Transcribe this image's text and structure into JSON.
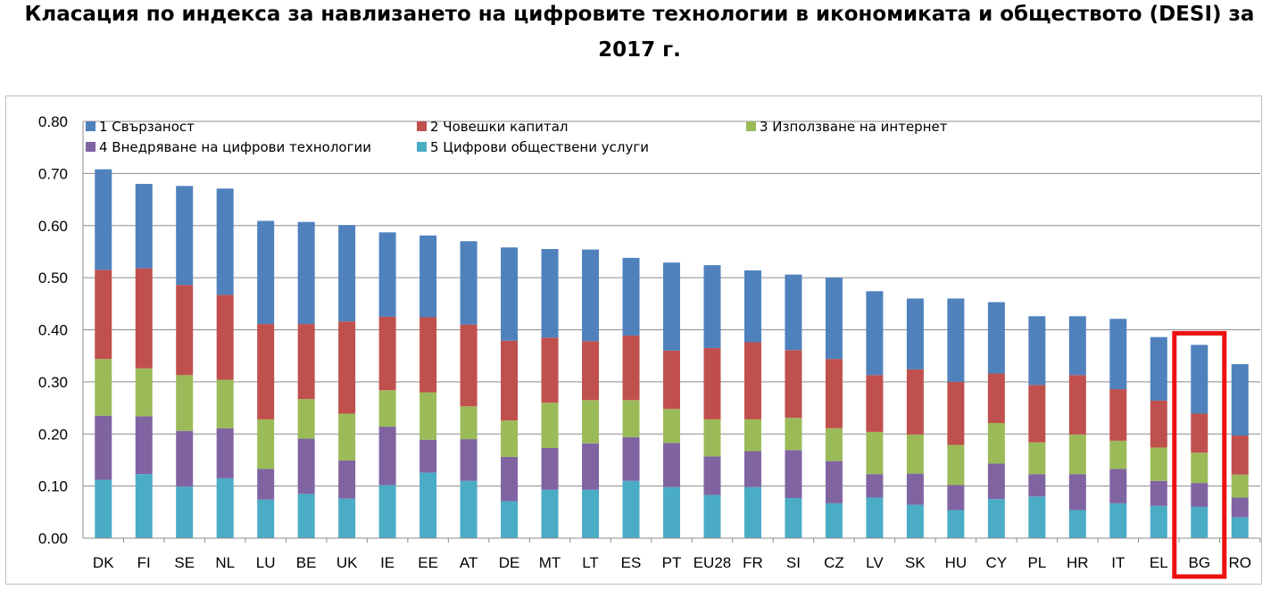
{
  "title": {
    "line1": "Класация по индекса за навлизането на цифровите технологии в икономиката и обществото (DESI) за",
    "line2": "2017 г."
  },
  "chart_data": {
    "type": "bar",
    "stacked": true,
    "ylim": [
      0,
      0.8
    ],
    "yticks": [
      "0.00",
      "0.10",
      "0.20",
      "0.30",
      "0.40",
      "0.50",
      "0.60",
      "0.70",
      "0.80"
    ],
    "grid": true,
    "legend_position": "top",
    "categories": [
      "DK",
      "FI",
      "SE",
      "NL",
      "LU",
      "BE",
      "UK",
      "IE",
      "EE",
      "AT",
      "DE",
      "MT",
      "LT",
      "ES",
      "PT",
      "EU28",
      "FR",
      "SI",
      "CZ",
      "LV",
      "SK",
      "HU",
      "CY",
      "PL",
      "HR",
      "IT",
      "EL",
      "BG",
      "RO"
    ],
    "highlight_category": "BG",
    "highlight_color": "#ee1111",
    "series": [
      {
        "name": "5 Цифрови обществени услуги",
        "color": "#4bacc6",
        "values": [
          0.112,
          0.123,
          0.099,
          0.115,
          0.074,
          0.085,
          0.076,
          0.102,
          0.126,
          0.11,
          0.071,
          0.093,
          0.093,
          0.11,
          0.098,
          0.083,
          0.098,
          0.077,
          0.067,
          0.078,
          0.064,
          0.054,
          0.075,
          0.08,
          0.054,
          0.067,
          0.062,
          0.06,
          0.04
        ]
      },
      {
        "name": "4 Внедряване на цифрови технологии",
        "color": "#8064a2",
        "values": [
          0.123,
          0.111,
          0.107,
          0.096,
          0.059,
          0.106,
          0.073,
          0.112,
          0.063,
          0.08,
          0.085,
          0.08,
          0.089,
          0.084,
          0.085,
          0.074,
          0.069,
          0.092,
          0.081,
          0.045,
          0.06,
          0.048,
          0.068,
          0.043,
          0.069,
          0.066,
          0.048,
          0.046,
          0.038
        ]
      },
      {
        "name": "3 Използване на интернет",
        "color": "#9bbb59",
        "values": [
          0.109,
          0.092,
          0.107,
          0.093,
          0.095,
          0.076,
          0.09,
          0.07,
          0.091,
          0.063,
          0.07,
          0.087,
          0.083,
          0.071,
          0.065,
          0.071,
          0.061,
          0.062,
          0.063,
          0.081,
          0.075,
          0.077,
          0.078,
          0.061,
          0.076,
          0.054,
          0.064,
          0.058,
          0.044
        ]
      },
      {
        "name": "2 Човешки капитал",
        "color": "#c0504d",
        "values": [
          0.171,
          0.192,
          0.173,
          0.163,
          0.183,
          0.144,
          0.177,
          0.141,
          0.144,
          0.157,
          0.153,
          0.125,
          0.113,
          0.124,
          0.112,
          0.137,
          0.148,
          0.13,
          0.133,
          0.109,
          0.125,
          0.121,
          0.095,
          0.11,
          0.114,
          0.099,
          0.09,
          0.075,
          0.075
        ]
      },
      {
        "name": "1 Свързаност",
        "color": "#4f81bd",
        "values": [
          0.193,
          0.162,
          0.19,
          0.204,
          0.198,
          0.196,
          0.185,
          0.162,
          0.157,
          0.16,
          0.179,
          0.17,
          0.176,
          0.149,
          0.169,
          0.159,
          0.138,
          0.145,
          0.156,
          0.161,
          0.136,
          0.16,
          0.137,
          0.132,
          0.113,
          0.135,
          0.122,
          0.132,
          0.137
        ]
      }
    ]
  },
  "legend": {
    "rows": [
      [
        "1 Свързаност",
        "2 Човешки капитал",
        "3 Използване на интернет"
      ],
      [
        "4 Внедряване на цифрови технологии",
        "5 Цифрови обществени услуги"
      ]
    ]
  }
}
